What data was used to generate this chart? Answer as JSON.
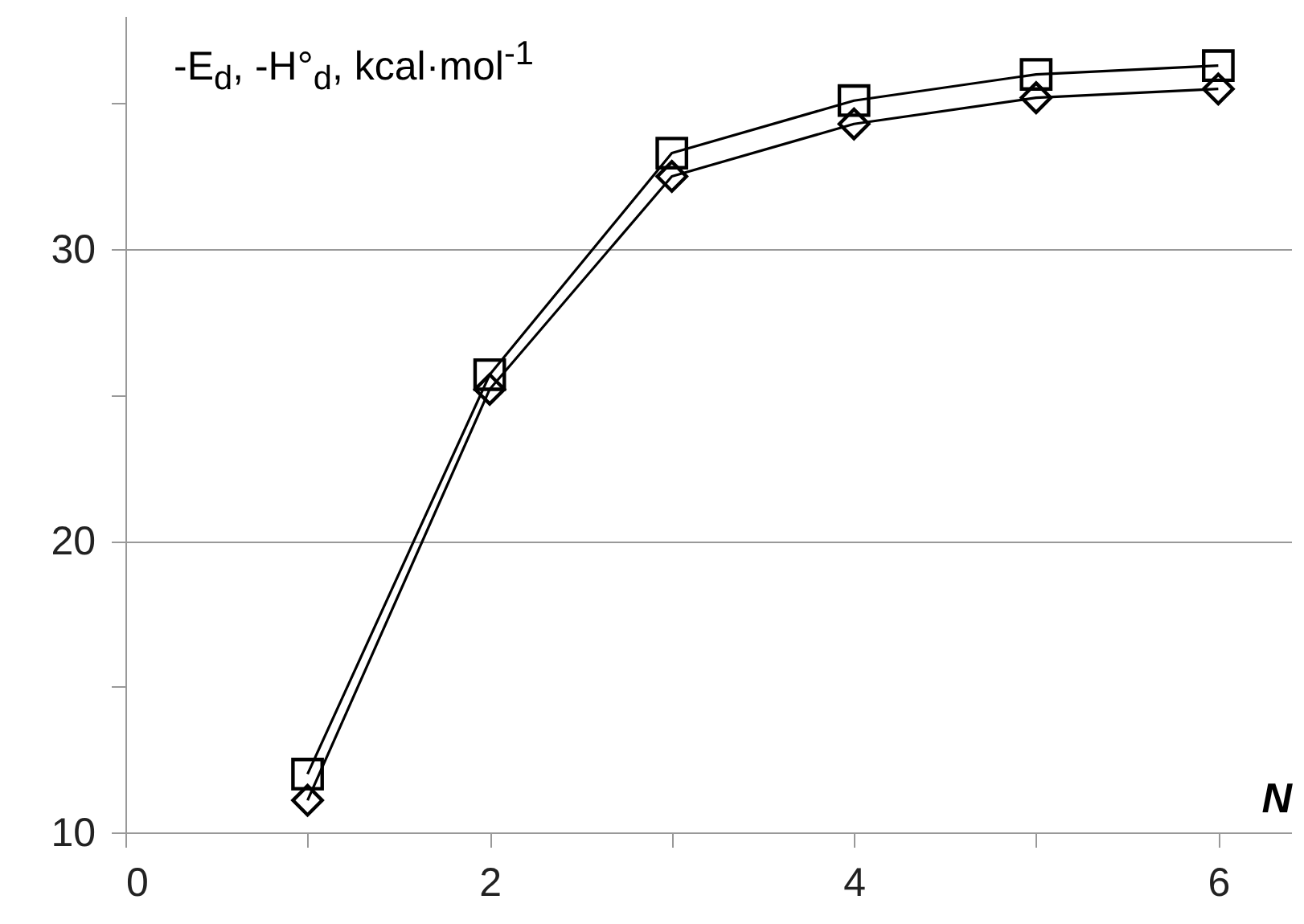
{
  "chart_data": {
    "type": "line",
    "ylabel": "-E$_{d}$, -H°$_{d}$, kcal·mol$^{-1}$",
    "xlabel": "N",
    "x": [
      1,
      2,
      3,
      4,
      5,
      6
    ],
    "series": [
      {
        "color": "#000000",
        "marker": "square",
        "values": [
          12.0,
          25.7,
          33.3,
          35.1,
          36.0,
          36.3
        ]
      },
      {
        "color": "#000000",
        "marker": "diamond",
        "values": [
          11.1,
          25.2,
          32.5,
          34.3,
          35.2,
          35.5
        ]
      }
    ],
    "xlim": [
      0,
      6.4
    ],
    "xticks": [
      0,
      {
        "value": 1,
        "label": null
      },
      2,
      {
        "value": 3,
        "label": null
      },
      4,
      {
        "value": 5,
        "label": null
      },
      6
    ],
    "ylim": [
      10,
      38
    ],
    "yticks": [
      10,
      {
        "value": 15,
        "label": null
      },
      20,
      {
        "value": 25,
        "label": null
      },
      30,
      {
        "value": 35,
        "label": null
      }
    ],
    "grid": "y",
    "line_style": "solid"
  }
}
